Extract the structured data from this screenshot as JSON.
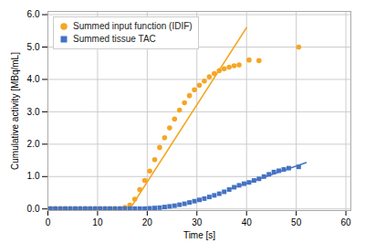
{
  "chart_data": {
    "type": "scatter",
    "xlabel": "Time [s]",
    "ylabel": "Cumulative activity [MBq/mL]",
    "xlim": [
      0,
      61
    ],
    "ylim": [
      -0.05,
      6.1
    ],
    "xticks": [
      0,
      10,
      20,
      30,
      40,
      50,
      60
    ],
    "yticks": [
      0,
      1,
      2,
      3,
      4,
      5,
      6
    ],
    "grid": true,
    "legend": "upper left",
    "series": [
      {
        "type": "line",
        "color": "#f5a623",
        "line_style": "solid",
        "x": [
          16.5,
          40.0
        ],
        "values": [
          0.0,
          5.6
        ]
      },
      {
        "type": "scatter",
        "name": "Summed input function (IDIF)",
        "color": "#f5a623",
        "marker": "circle",
        "x": [
          0.5,
          1.5,
          2.5,
          3.5,
          4.5,
          5.5,
          6.5,
          7.5,
          8.5,
          9.5,
          10.5,
          11.5,
          12.5,
          13.5,
          14.5,
          15.5,
          16.5,
          17.5,
          18.5,
          19.5,
          20.5,
          21.5,
          22.5,
          23.5,
          24.5,
          25.5,
          26.5,
          27.5,
          28.5,
          29.5,
          30.5,
          31.5,
          32.5,
          33.5,
          34.5,
          35.5,
          36.5,
          37.5,
          38.5,
          40.5,
          42.5,
          50.5
        ],
        "values": [
          0.01,
          0.01,
          0.01,
          0.01,
          0.01,
          0.01,
          0.01,
          0.01,
          0.01,
          0.01,
          0.01,
          0.01,
          0.01,
          0.01,
          0.01,
          0.05,
          0.12,
          0.3,
          0.6,
          0.88,
          1.17,
          1.52,
          1.9,
          2.2,
          2.5,
          2.78,
          3.05,
          3.28,
          3.5,
          3.68,
          3.82,
          3.95,
          4.08,
          4.18,
          4.27,
          4.33,
          4.38,
          4.42,
          4.45,
          4.6,
          4.58,
          5.0
        ]
      },
      {
        "type": "line",
        "color": "#4472c4",
        "line_style": "solid",
        "x": [
          37.0,
          52.0
        ],
        "values": [
          0.63,
          1.43
        ]
      },
      {
        "type": "scatter",
        "name": "Summed tissue TAC",
        "color": "#4472c4",
        "marker": "square",
        "x": [
          0.5,
          1.5,
          2.5,
          3.5,
          4.5,
          5.5,
          6.5,
          7.5,
          8.5,
          9.5,
          10.5,
          11.5,
          12.5,
          13.5,
          14.5,
          15.5,
          16.5,
          17.5,
          18.5,
          19.5,
          20.5,
          21.5,
          22.5,
          23.5,
          24.5,
          25.5,
          26.5,
          27.5,
          28.5,
          29.5,
          30.5,
          31.5,
          32.5,
          33.5,
          34.5,
          35.5,
          36.5,
          37.5,
          38.5,
          39.5,
          40.5,
          41.5,
          42.5,
          43.5,
          44.5,
          45.5,
          46.5,
          47.5,
          48.5,
          50.5
        ],
        "values": [
          0.01,
          0.01,
          0.01,
          0.01,
          0.01,
          0.01,
          0.01,
          0.01,
          0.01,
          0.01,
          0.01,
          0.01,
          0.01,
          0.01,
          0.01,
          0.01,
          0.01,
          0.01,
          0.01,
          0.01,
          0.02,
          0.03,
          0.04,
          0.06,
          0.08,
          0.1,
          0.13,
          0.16,
          0.2,
          0.24,
          0.28,
          0.32,
          0.37,
          0.42,
          0.47,
          0.53,
          0.6,
          0.67,
          0.73,
          0.78,
          0.82,
          0.88,
          0.93,
          1.0,
          1.07,
          1.14,
          1.18,
          1.22,
          1.26,
          1.3
        ]
      }
    ]
  }
}
